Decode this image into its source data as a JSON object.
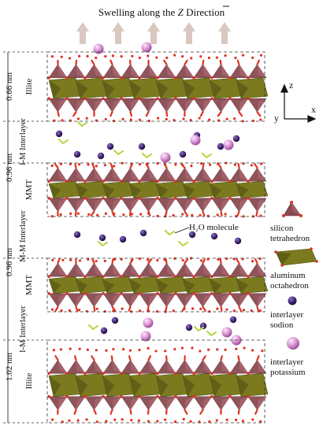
{
  "title": {
    "prefix": "Swelling along the ",
    "axis_letter": "Z",
    "suffix": " Direction"
  },
  "axes": {
    "z": "z",
    "y": "y",
    "x": "x"
  },
  "thickness_labels": [
    "0.66 nm",
    "0.96 nm",
    "0.96 nm",
    "1.02 nm"
  ],
  "layer_labels": [
    "Illite",
    "I-M Interlayer",
    "MMT",
    "M-M Interlayer",
    "MMT",
    "I-M Interlayer",
    "Illite"
  ],
  "water_callout": "H₂O molecule",
  "legend": [
    {
      "icon": "silicon-tetrahedron-icon",
      "lines": [
        "silicon",
        "tetrahedron"
      ]
    },
    {
      "icon": "aluminum-octahedron-icon",
      "lines": [
        "aluminum",
        "octahedron"
      ]
    },
    {
      "icon": "sodium-ion-icon",
      "lines": [
        "interlayer",
        "sodion"
      ]
    },
    {
      "icon": "potassium-ion-icon",
      "lines": [
        "interlayer",
        "potassium"
      ]
    }
  ],
  "colors": {
    "tetrahedron": "#8a4a52",
    "octahedron": "#7b7a1f",
    "oxygen": "#e03020",
    "sodium": "#3a1f6a",
    "potassium": "#d68fd0",
    "water": "#b7d84a",
    "arrow": "#d9c8c0"
  }
}
